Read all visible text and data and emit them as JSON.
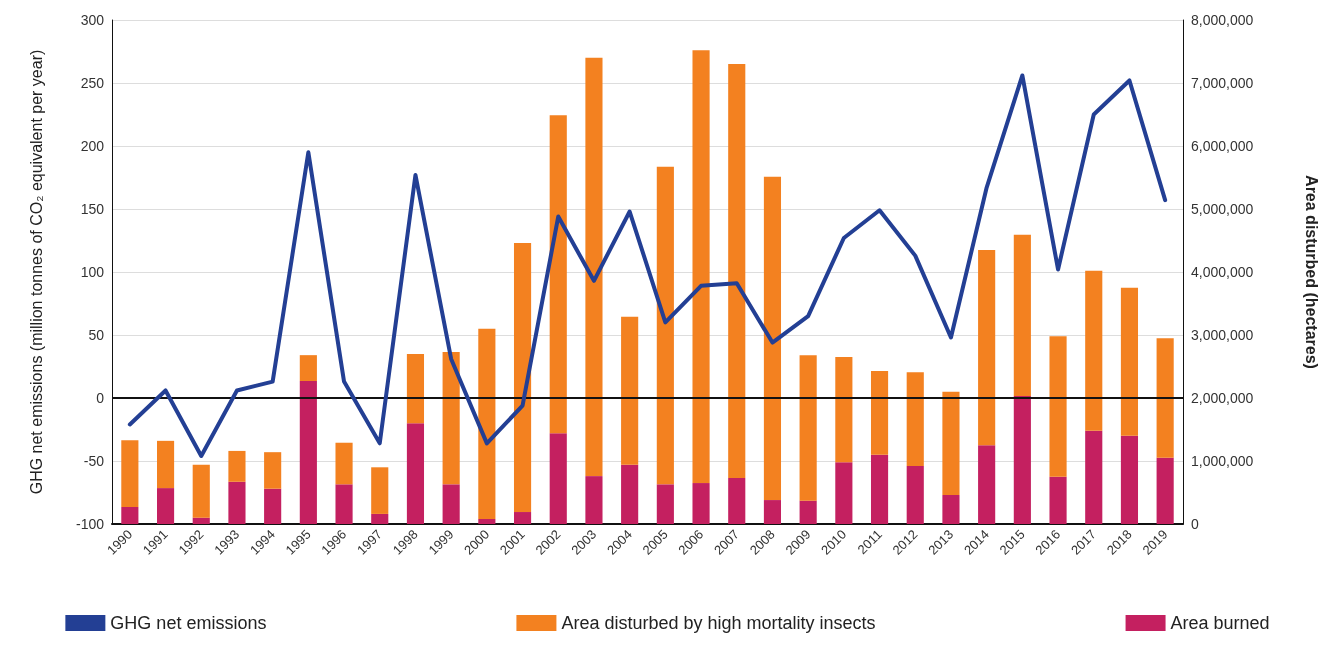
{
  "chart_data": {
    "type": "bar",
    "stacked": true,
    "categories": [
      "1990",
      "1991",
      "1992",
      "1993",
      "1994",
      "1995",
      "1996",
      "1997",
      "1998",
      "1999",
      "2000",
      "2001",
      "2002",
      "2003",
      "2004",
      "2005",
      "2006",
      "2007",
      "2008",
      "2009",
      "2010",
      "2011",
      "2012",
      "2013",
      "2014",
      "2015",
      "2016",
      "2017",
      "2018",
      "2019"
    ],
    "series": [
      {
        "name": "GHG net emissions",
        "type": "line",
        "color": "#233f94",
        "values": [
          -21,
          6,
          -46,
          6,
          13,
          195,
          13,
          -36,
          177,
          31,
          -36,
          -6,
          144,
          93,
          148,
          60,
          89,
          91,
          44,
          65,
          127,
          149,
          113,
          48,
          167,
          256,
          102,
          225,
          252,
          157
        ]
      },
      {
        "name": "Area burned",
        "axis": "y2",
        "color": "#c42060",
        "values": [
          270000,
          570000,
          100000,
          670000,
          560000,
          2270000,
          630000,
          160000,
          1600000,
          630000,
          80000,
          190000,
          1440000,
          760000,
          940000,
          630000,
          650000,
          730000,
          380000,
          370000,
          980000,
          1100000,
          920000,
          460000,
          1250000,
          2030000,
          750000,
          1480000,
          1400000,
          1050000
        ]
      },
      {
        "name": "Area disturbed by high mortality insects",
        "axis": "y2",
        "color": "#f38120",
        "values": [
          1060000,
          750000,
          840000,
          490000,
          580000,
          410000,
          660000,
          740000,
          1100000,
          2100000,
          3020000,
          4270000,
          5050000,
          6640000,
          2350000,
          5040000,
          6870000,
          6570000,
          5130000,
          2310000,
          1670000,
          1330000,
          1490000,
          1640000,
          3100000,
          2560000,
          2230000,
          2540000,
          2350000,
          1900000
        ]
      }
    ],
    "ylabel": "GHG net emissions (million tonnes of CO₂ equivalent per year)",
    "y2label": "Area disturbed (hectares)",
    "ylim": [
      -100,
      300
    ],
    "yticks": [
      -100,
      -50,
      0,
      50,
      100,
      150,
      200,
      250,
      300
    ],
    "y2lim": [
      0,
      8000000
    ],
    "y2ticks": [
      {
        "value": 0,
        "label": "0"
      },
      {
        "value": 1000000,
        "label": "1,000,000"
      },
      {
        "value": 2000000,
        "label": "2,000,000"
      },
      {
        "value": 3000000,
        "label": "3,000,000"
      },
      {
        "value": 4000000,
        "label": "4,000,000"
      },
      {
        "value": 5000000,
        "label": "5,000,000"
      },
      {
        "value": 6000000,
        "label": "6,000,000"
      },
      {
        "value": 7000000,
        "label": "7,000,000"
      },
      {
        "value": 8000000,
        "label": "8,000,000"
      }
    ],
    "ref_lines": [
      {
        "axis": "y",
        "value": 0,
        "color": "#111111"
      }
    ],
    "grid": "y",
    "legend": "bottom",
    "marker": "none",
    "line_style": "solid"
  }
}
